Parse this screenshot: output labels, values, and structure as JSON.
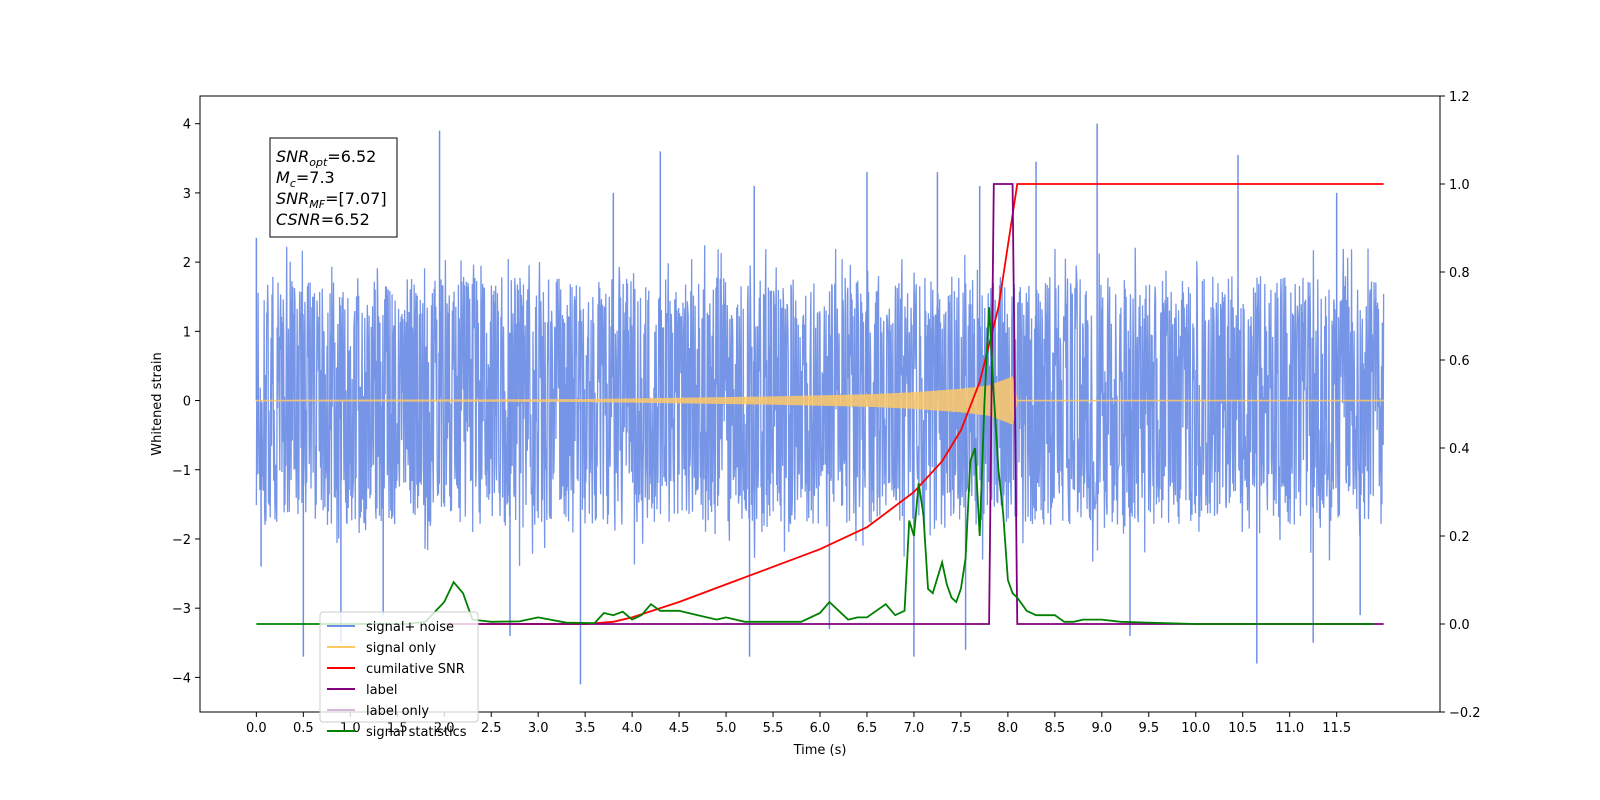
{
  "chart_data": {
    "type": "line",
    "xlabel": "Time (s)",
    "ylabel": "Whitened strain",
    "xlim": [
      -0.6,
      12.6
    ],
    "ylim": [
      -4.5,
      4.4
    ],
    "y2lim": [
      -0.2,
      1.2
    ],
    "x_ticks": [
      0.0,
      0.5,
      1.0,
      1.5,
      2.0,
      2.5,
      3.0,
      3.5,
      4.0,
      4.5,
      5.0,
      5.5,
      6.0,
      6.5,
      7.0,
      7.5,
      8.0,
      8.5,
      9.0,
      9.5,
      10.0,
      10.5,
      11.0,
      11.5
    ],
    "x_tick_labels": [
      "0.0",
      "0.5",
      "1.0",
      "1.5",
      "2.0",
      "2.5",
      "3.0",
      "3.5",
      "4.0",
      "4.5",
      "5.0",
      "5.5",
      "6.0",
      "6.5",
      "7.0",
      "7.5",
      "8.0",
      "8.5",
      "9.0",
      "9.5",
      "10.0",
      "10.5",
      "11.0",
      "11.5"
    ],
    "y_ticks": [
      -4,
      -3,
      -2,
      -1,
      0,
      1,
      2,
      3,
      4
    ],
    "y_tick_labels": [
      "−4",
      "−3",
      "−2",
      "−1",
      "0",
      "1",
      "2",
      "3",
      "4"
    ],
    "y2_ticks": [
      -0.2,
      0.0,
      0.2,
      0.4,
      0.6,
      0.8,
      1.0,
      1.2
    ],
    "y2_tick_labels": [
      "−0.2",
      "0.0",
      "0.2",
      "0.4",
      "0.6",
      "0.8",
      "1.0",
      "1.2"
    ],
    "grid": false,
    "legend_position": "lower-left",
    "annotation": {
      "lines": [
        {
          "main": "SNR",
          "sub": "opt",
          "rest": "=6.52"
        },
        {
          "main": "M",
          "sub": "c",
          "rest": "=7.3"
        },
        {
          "main": "SNR",
          "sub": "MF",
          "rest": "=[7.07]"
        },
        {
          "main": "CSNR",
          "sub": "",
          "rest": "=6.52"
        }
      ]
    },
    "series": [
      {
        "name": "signal+ noise",
        "axis": "left",
        "color": "#6f8fe6",
        "x_range": [
          0.0,
          12.0
        ],
        "envelope_upper": 1.9,
        "envelope_lower": -2.0,
        "spikes": [
          {
            "x": 0.0,
            "y": 2.35
          },
          {
            "x": 0.05,
            "y": -2.4
          },
          {
            "x": 0.5,
            "y": -3.7
          },
          {
            "x": 0.9,
            "y": -3.5
          },
          {
            "x": 1.35,
            "y": -3.1
          },
          {
            "x": 1.95,
            "y": 3.9
          },
          {
            "x": 2.7,
            "y": -3.4
          },
          {
            "x": 3.45,
            "y": -4.1
          },
          {
            "x": 3.8,
            "y": 3.0
          },
          {
            "x": 4.3,
            "y": 3.6
          },
          {
            "x": 5.25,
            "y": -3.7
          },
          {
            "x": 5.3,
            "y": 3.1
          },
          {
            "x": 6.1,
            "y": -3.3
          },
          {
            "x": 6.5,
            "y": 3.3
          },
          {
            "x": 7.0,
            "y": -3.7
          },
          {
            "x": 7.25,
            "y": 3.3
          },
          {
            "x": 7.55,
            "y": -3.6
          },
          {
            "x": 7.7,
            "y": 3.1
          },
          {
            "x": 8.3,
            "y": 3.45
          },
          {
            "x": 8.95,
            "y": 4.0
          },
          {
            "x": 9.3,
            "y": -3.4
          },
          {
            "x": 10.45,
            "y": 3.55
          },
          {
            "x": 10.65,
            "y": -3.8
          },
          {
            "x": 11.25,
            "y": -3.5
          },
          {
            "x": 11.5,
            "y": 3.0
          },
          {
            "x": 11.75,
            "y": -3.1
          }
        ]
      },
      {
        "name": "signal only",
        "axis": "left",
        "color": "#ffc966",
        "envelope_x": [
          0.0,
          2.0,
          3.5,
          4.5,
          5.5,
          6.5,
          7.0,
          7.5,
          7.8,
          8.0,
          8.05,
          8.1,
          12.0
        ],
        "envelope_amp": [
          0.01,
          0.015,
          0.02,
          0.04,
          0.06,
          0.09,
          0.12,
          0.17,
          0.22,
          0.32,
          0.35,
          0.01,
          0.01
        ]
      },
      {
        "name": "cumilative SNR",
        "axis": "right",
        "color": "#ff0000",
        "x": [
          2.0,
          3.0,
          3.5,
          3.8,
          4.0,
          4.5,
          5.0,
          5.5,
          6.0,
          6.5,
          7.0,
          7.3,
          7.5,
          7.7,
          7.9,
          8.05,
          8.1,
          12.0
        ],
        "values": [
          0.0,
          0.0,
          0.0,
          0.005,
          0.015,
          0.05,
          0.09,
          0.13,
          0.17,
          0.22,
          0.3,
          0.37,
          0.44,
          0.55,
          0.72,
          0.93,
          1.0,
          1.0
        ]
      },
      {
        "name": "label",
        "axis": "right",
        "color": "#800080",
        "x": [
          2.0,
          7.8,
          7.85,
          8.05,
          8.1,
          12.0
        ],
        "values": [
          0.0,
          0.0,
          1.0,
          1.0,
          0.0,
          0.0
        ]
      },
      {
        "name": "label only",
        "axis": "right",
        "color": "#d8b8d8",
        "x": [],
        "values": []
      },
      {
        "name": "signal statistics",
        "axis": "right",
        "color": "#008000",
        "x": [
          0.0,
          1.6,
          1.8,
          2.0,
          2.1,
          2.2,
          2.3,
          2.5,
          2.8,
          3.0,
          3.3,
          3.6,
          3.7,
          3.8,
          3.9,
          4.0,
          4.1,
          4.2,
          4.3,
          4.5,
          4.7,
          4.9,
          5.0,
          5.2,
          5.5,
          5.8,
          6.0,
          6.1,
          6.2,
          6.3,
          6.4,
          6.5,
          6.7,
          6.8,
          6.9,
          6.95,
          7.0,
          7.05,
          7.1,
          7.15,
          7.2,
          7.3,
          7.35,
          7.4,
          7.45,
          7.5,
          7.55,
          7.6,
          7.65,
          7.7,
          7.75,
          7.8,
          7.85,
          7.9,
          7.95,
          8.0,
          8.05,
          8.1,
          8.2,
          8.3,
          8.4,
          8.5,
          8.6,
          8.7,
          8.8,
          8.9,
          9.0,
          9.2,
          9.5,
          10.0,
          10.5,
          11.0,
          11.5,
          11.9
        ],
        "values": [
          0.0,
          0.0,
          0.005,
          0.05,
          0.095,
          0.07,
          0.01,
          0.005,
          0.006,
          0.015,
          0.003,
          0.002,
          0.025,
          0.02,
          0.028,
          0.01,
          0.02,
          0.045,
          0.03,
          0.03,
          0.02,
          0.01,
          0.015,
          0.005,
          0.005,
          0.005,
          0.025,
          0.05,
          0.03,
          0.01,
          0.015,
          0.015,
          0.045,
          0.02,
          0.03,
          0.235,
          0.2,
          0.32,
          0.25,
          0.08,
          0.07,
          0.14,
          0.09,
          0.06,
          0.05,
          0.08,
          0.15,
          0.37,
          0.4,
          0.2,
          0.5,
          0.72,
          0.52,
          0.35,
          0.25,
          0.1,
          0.07,
          0.06,
          0.03,
          0.02,
          0.02,
          0.02,
          0.005,
          0.005,
          0.01,
          0.01,
          0.01,
          0.005,
          0.003,
          0.0,
          0.0,
          0.0,
          0.0,
          0.0
        ]
      }
    ]
  }
}
